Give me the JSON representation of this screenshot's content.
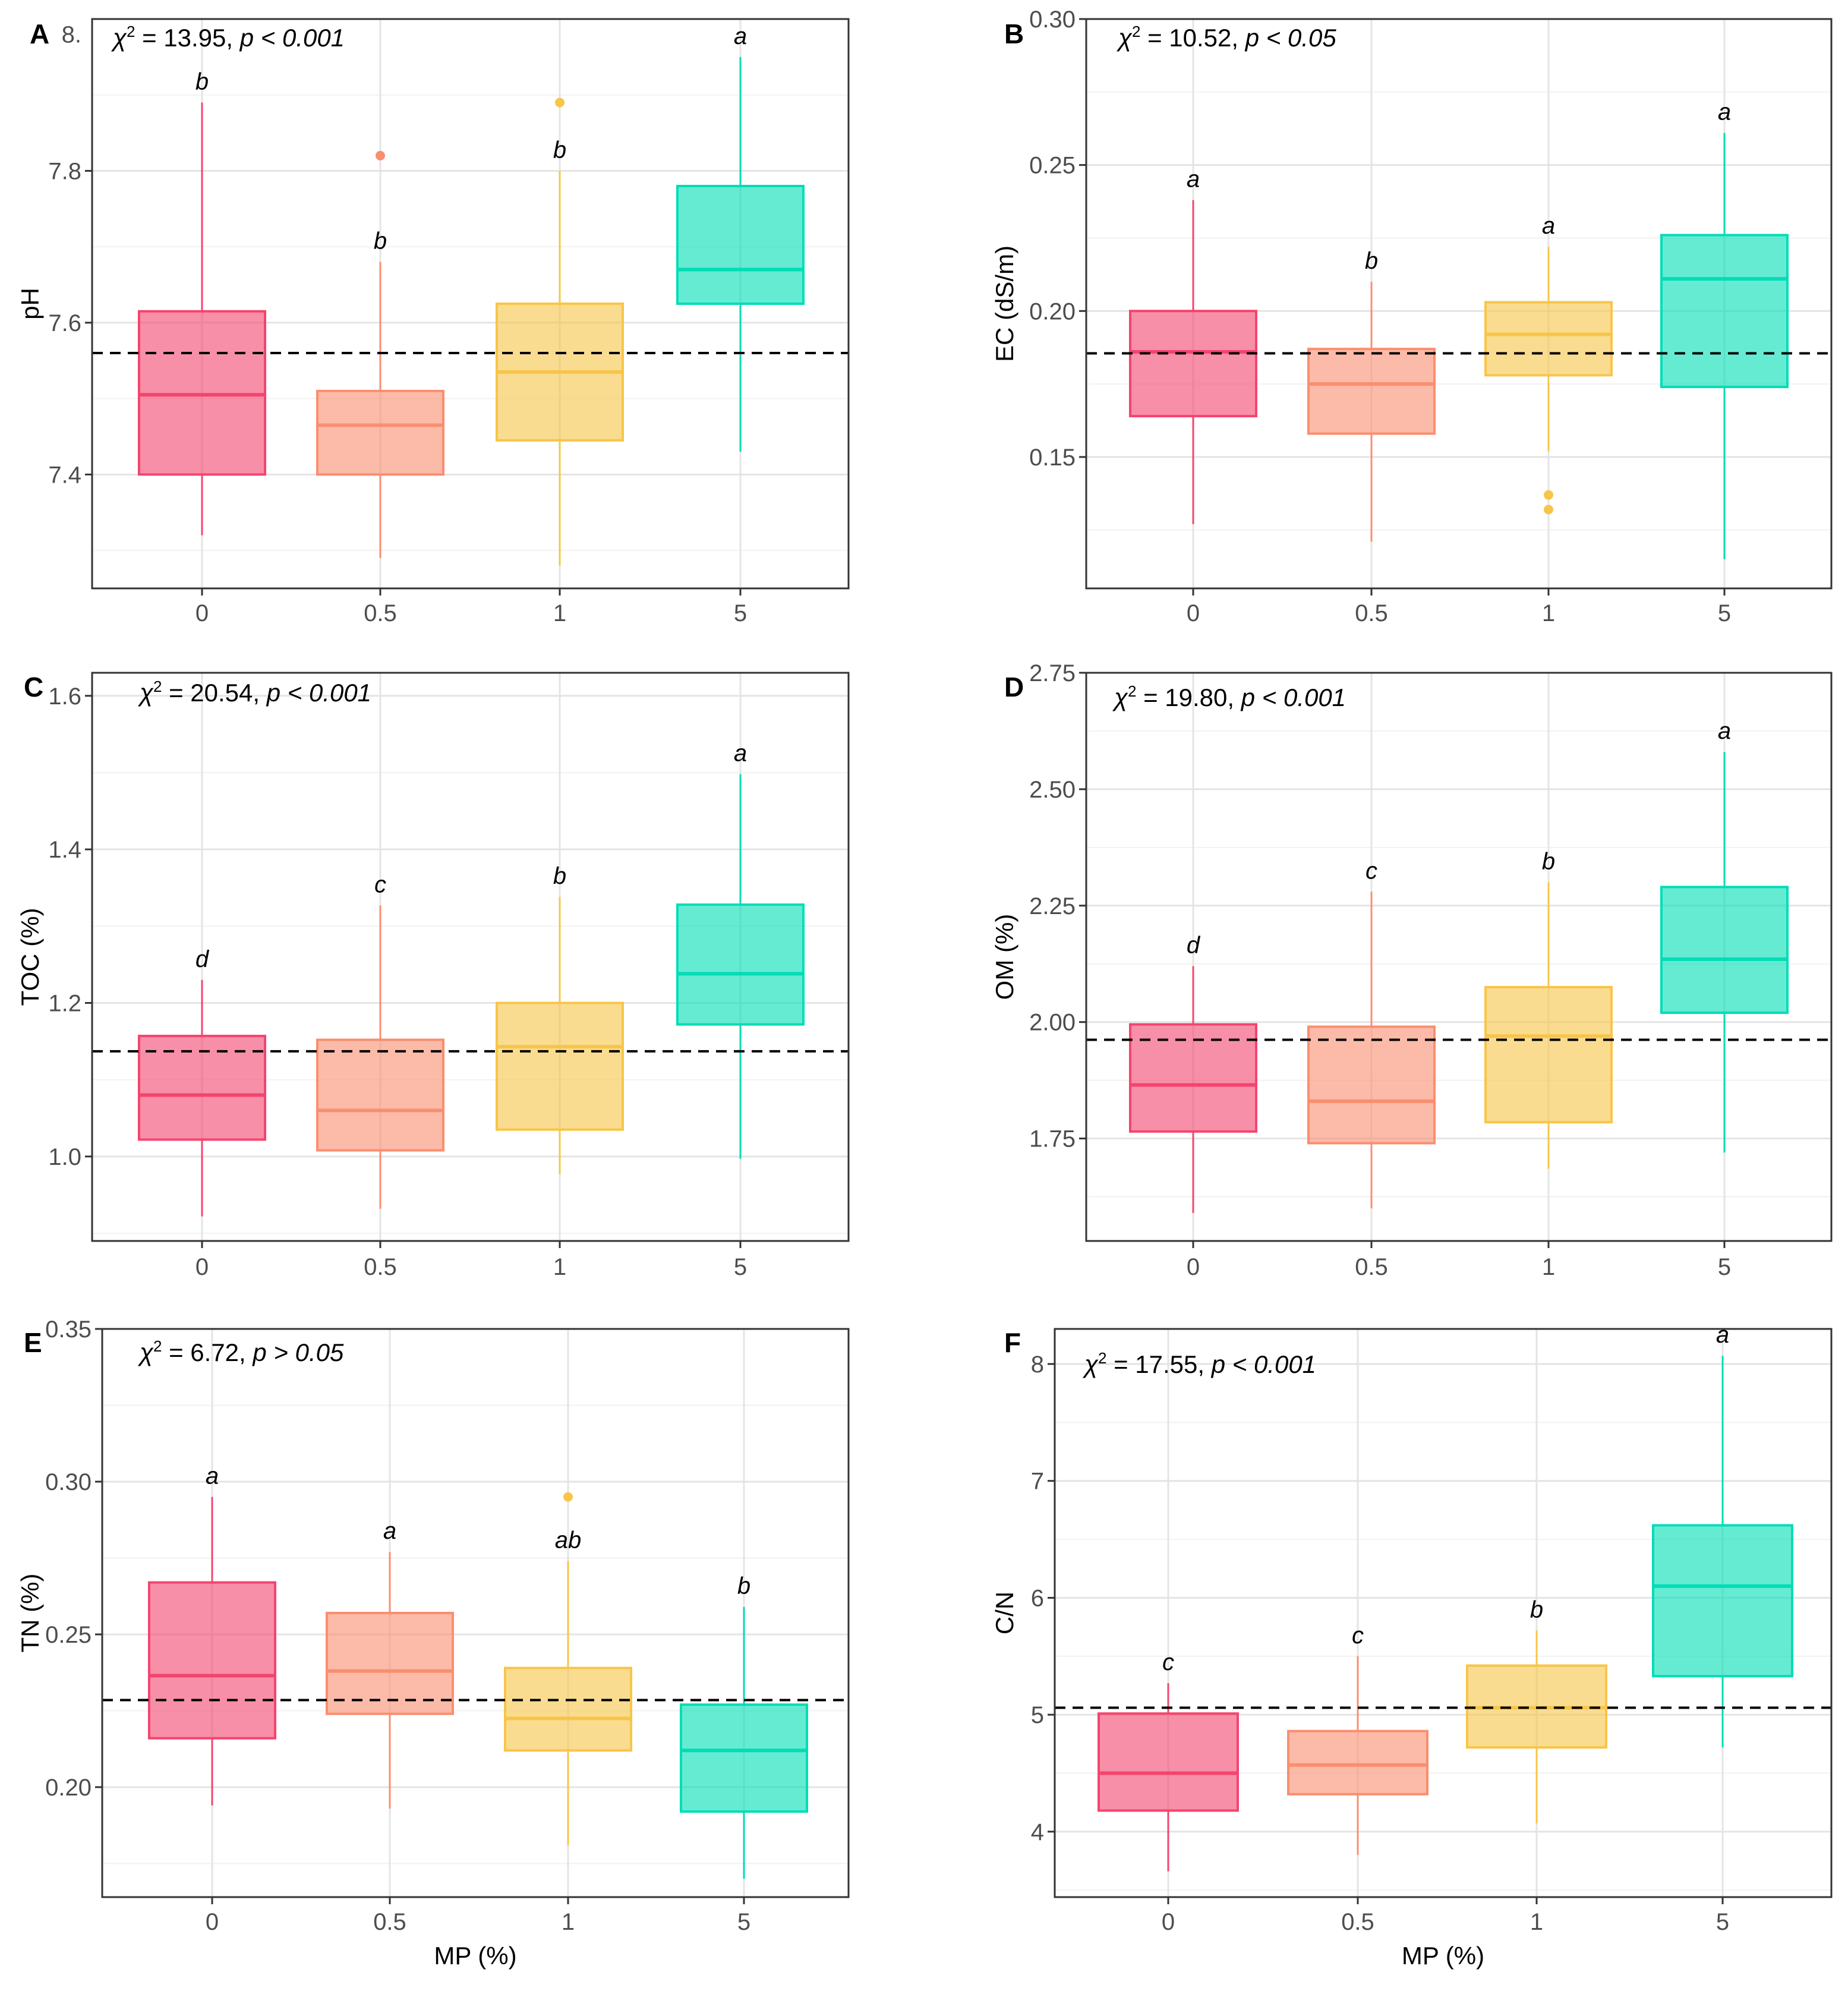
{
  "figure": {
    "x_axis_title": "MP (%)",
    "colors": [
      "#f4446e",
      "#fa8e6f",
      "#f7c548",
      "#00ddb5"
    ]
  },
  "chart_data": [
    {
      "type": "box",
      "panel": "A",
      "ylabel": "pH",
      "stat_prefix": "χ",
      "stat_sup": "2",
      "stat_text": " = 13.95, ",
      "stat_p": "p < 0.001",
      "categories": [
        "0",
        "0.5",
        "1",
        "5"
      ],
      "ylim": [
        7.25,
        8.0
      ],
      "yticks": [
        7.4,
        7.6,
        7.8
      ],
      "ytick_labels": [
        "7.4",
        "7.6",
        "7.8"
      ],
      "extra_tick_label": "8.",
      "extra_tick_value": 7.98,
      "reference_line": 7.56,
      "boxes": [
        {
          "min": 7.32,
          "q1": 7.4,
          "median": 7.505,
          "q3": 7.615,
          "max": 7.89,
          "letter": "b",
          "outliers": []
        },
        {
          "min": 7.29,
          "q1": 7.4,
          "median": 7.465,
          "q3": 7.51,
          "max": 7.68,
          "letter": "b",
          "outliers": [
            7.82
          ]
        },
        {
          "min": 7.28,
          "q1": 7.445,
          "median": 7.535,
          "q3": 7.625,
          "max": 7.8,
          "letter": "b",
          "outliers": [
            7.89
          ]
        },
        {
          "min": 7.43,
          "q1": 7.625,
          "median": 7.67,
          "q3": 7.78,
          "max": 7.95,
          "letter": "a",
          "outliers": []
        }
      ]
    },
    {
      "type": "box",
      "panel": "B",
      "ylabel": "EC (dS/m)",
      "stat_prefix": "χ",
      "stat_sup": "2",
      "stat_text": " = 10.52, ",
      "stat_p": "p < 0.05",
      "categories": [
        "0",
        "0.5",
        "1",
        "5"
      ],
      "ylim": [
        0.105,
        0.3
      ],
      "yticks": [
        0.15,
        0.2,
        0.25,
        0.3
      ],
      "ytick_labels": [
        "0.15",
        "0.20",
        "0.25",
        "0.30"
      ],
      "reference_line": 0.1855,
      "boxes": [
        {
          "min": 0.127,
          "q1": 0.164,
          "median": 0.186,
          "q3": 0.2,
          "max": 0.238,
          "letter": "a",
          "outliers": []
        },
        {
          "min": 0.121,
          "q1": 0.158,
          "median": 0.175,
          "q3": 0.187,
          "max": 0.21,
          "letter": "b",
          "outliers": []
        },
        {
          "min": 0.152,
          "q1": 0.178,
          "median": 0.192,
          "q3": 0.203,
          "max": 0.222,
          "letter": "a",
          "outliers": [
            0.137,
            0.132
          ]
        },
        {
          "min": 0.115,
          "q1": 0.174,
          "median": 0.211,
          "q3": 0.226,
          "max": 0.261,
          "letter": "a",
          "outliers": []
        }
      ]
    },
    {
      "type": "box",
      "panel": "C",
      "ylabel": "TOC (%)",
      "stat_prefix": "χ",
      "stat_sup": "2",
      "stat_text": " = 20.54, ",
      "stat_p": "p < 0.001",
      "categories": [
        "0",
        "0.5",
        "1",
        "5"
      ],
      "ylim": [
        0.89,
        1.63
      ],
      "yticks": [
        1.0,
        1.2,
        1.4,
        1.6
      ],
      "ytick_labels": [
        "1.0",
        "1.2",
        "1.4",
        "1.6"
      ],
      "reference_line": 1.137,
      "boxes": [
        {
          "min": 0.922,
          "q1": 1.022,
          "median": 1.08,
          "q3": 1.157,
          "max": 1.23,
          "letter": "d",
          "outliers": []
        },
        {
          "min": 0.932,
          "q1": 1.008,
          "median": 1.06,
          "q3": 1.152,
          "max": 1.327,
          "letter": "c",
          "outliers": []
        },
        {
          "min": 0.977,
          "q1": 1.035,
          "median": 1.143,
          "q3": 1.2,
          "max": 1.338,
          "letter": "b",
          "outliers": []
        },
        {
          "min": 0.997,
          "q1": 1.172,
          "median": 1.238,
          "q3": 1.328,
          "max": 1.498,
          "letter": "a",
          "outliers": []
        }
      ]
    },
    {
      "type": "box",
      "panel": "D",
      "ylabel": "OM (%)",
      "stat_prefix": "χ",
      "stat_sup": "2",
      "stat_text": " = 19.80, ",
      "stat_p": "p < 0.001",
      "categories": [
        "0",
        "0.5",
        "1",
        "5"
      ],
      "ylim": [
        1.53,
        2.75
      ],
      "yticks": [
        1.75,
        2.0,
        2.25,
        2.5,
        2.75
      ],
      "ytick_labels": [
        "1.75",
        "2.00",
        "2.25",
        "2.50",
        "2.75"
      ],
      "reference_line": 1.962,
      "boxes": [
        {
          "min": 1.59,
          "q1": 1.765,
          "median": 1.865,
          "q3": 1.995,
          "max": 2.12,
          "letter": "d",
          "outliers": []
        },
        {
          "min": 1.6,
          "q1": 1.74,
          "median": 1.83,
          "q3": 1.99,
          "max": 2.28,
          "letter": "c",
          "outliers": []
        },
        {
          "min": 1.685,
          "q1": 1.785,
          "median": 1.97,
          "q3": 2.075,
          "max": 2.3,
          "letter": "b",
          "outliers": []
        },
        {
          "min": 1.72,
          "q1": 2.02,
          "median": 2.135,
          "q3": 2.29,
          "max": 2.58,
          "letter": "a",
          "outliers": []
        }
      ]
    },
    {
      "type": "box",
      "panel": "E",
      "ylabel": "TN (%)",
      "stat_prefix": "χ",
      "stat_sup": "2",
      "stat_text": " = 6.72, ",
      "stat_p": "p > 0.05",
      "categories": [
        "0",
        "0.5",
        "1",
        "5"
      ],
      "ylim": [
        0.164,
        0.35
      ],
      "yticks": [
        0.2,
        0.25,
        0.3,
        0.35
      ],
      "ytick_labels": [
        "0.20",
        "0.25",
        "0.30",
        "0.35"
      ],
      "reference_line": 0.2285,
      "boxes": [
        {
          "min": 0.194,
          "q1": 0.216,
          "median": 0.2365,
          "q3": 0.267,
          "max": 0.295,
          "letter": "a",
          "outliers": []
        },
        {
          "min": 0.193,
          "q1": 0.224,
          "median": 0.238,
          "q3": 0.257,
          "max": 0.277,
          "letter": "a",
          "outliers": []
        },
        {
          "min": 0.181,
          "q1": 0.212,
          "median": 0.2225,
          "q3": 0.239,
          "max": 0.274,
          "letter": "ab",
          "outliers": [
            0.295
          ]
        },
        {
          "min": 0.17,
          "q1": 0.192,
          "median": 0.212,
          "q3": 0.227,
          "max": 0.259,
          "letter": "b",
          "outliers": []
        }
      ]
    },
    {
      "type": "box",
      "panel": "F",
      "ylabel": "C/N",
      "stat_prefix": "χ",
      "stat_sup": "2",
      "stat_text": " = 17.55, ",
      "stat_p": "p < 0.001",
      "categories": [
        "0",
        "0.5",
        "1",
        "5"
      ],
      "ylim": [
        3.44,
        8.3
      ],
      "yticks": [
        4,
        5,
        6,
        7,
        8
      ],
      "ytick_labels": [
        "4",
        "5",
        "6",
        "7",
        "8"
      ],
      "reference_line": 5.06,
      "boxes": [
        {
          "min": 3.66,
          "q1": 4.18,
          "median": 4.5,
          "q3": 5.01,
          "max": 5.27,
          "letter": "c",
          "outliers": []
        },
        {
          "min": 3.8,
          "q1": 4.32,
          "median": 4.57,
          "q3": 4.86,
          "max": 5.5,
          "letter": "c",
          "outliers": []
        },
        {
          "min": 4.07,
          "q1": 4.72,
          "median": 5.06,
          "q3": 5.42,
          "max": 5.72,
          "letter": "b",
          "outliers": []
        },
        {
          "min": 4.72,
          "q1": 5.33,
          "median": 6.1,
          "q3": 6.62,
          "max": 8.07,
          "letter": "a",
          "outliers": []
        }
      ]
    }
  ]
}
